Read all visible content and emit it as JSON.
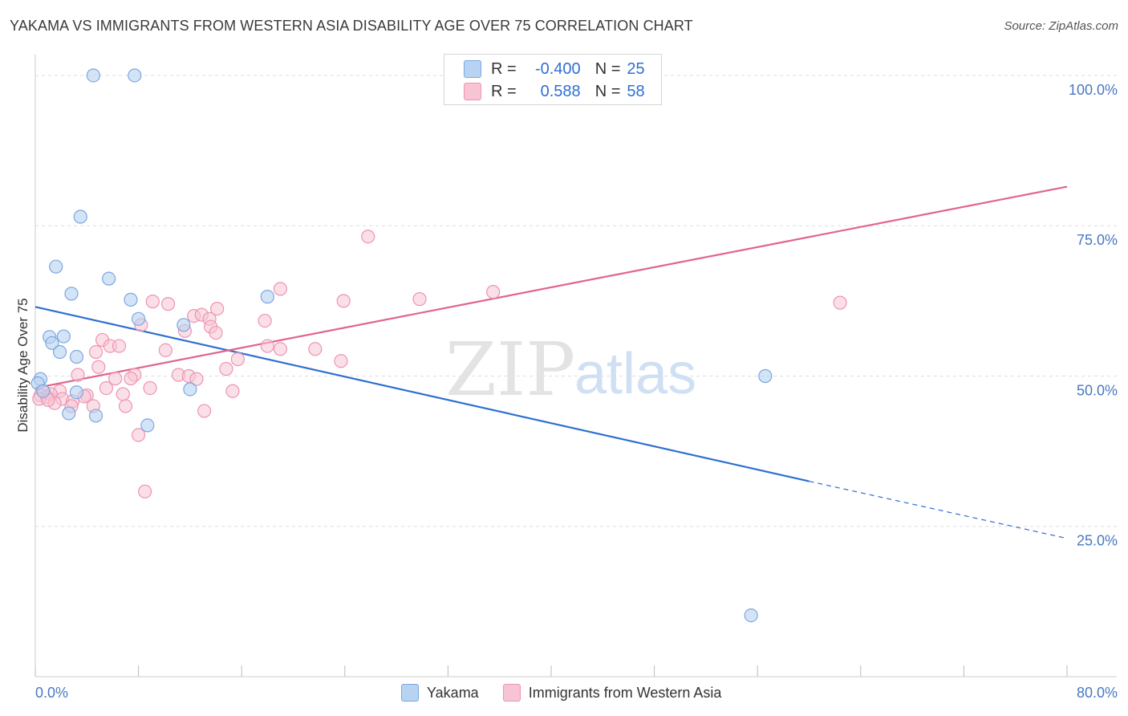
{
  "header": {
    "title": "YAKAMA VS IMMIGRANTS FROM WESTERN ASIA DISABILITY AGE OVER 75 CORRELATION CHART",
    "source": "Source: ZipAtlas.com"
  },
  "legend_top": {
    "rows": [
      {
        "r_label": "R =",
        "r_value": "-0.400",
        "n_label": "N =",
        "n_value": "25"
      },
      {
        "r_label": "R =",
        "r_value": "0.588",
        "n_label": "N =",
        "n_value": "58"
      }
    ]
  },
  "watermark": {
    "zip": "ZIP",
    "atlas": "atlas"
  },
  "colors": {
    "yakama_fill": "#b8d2f2",
    "yakama_stroke": "#7aa7e0",
    "yakama_line": "#2f6fd1",
    "wa_fill": "#f8c4d4",
    "wa_stroke": "#ec94b2",
    "wa_line": "#e0648c",
    "grid": "#dddddd",
    "axis_label": "#4a78c2"
  },
  "chart_data": {
    "type": "scatter",
    "title": "YAKAMA VS IMMIGRANTS FROM WESTERN ASIA DISABILITY AGE OVER 75 CORRELATION CHART",
    "xlabel": "",
    "ylabel": "Disability Age Over 75",
    "xlim": [
      0,
      80
    ],
    "ylim": [
      0,
      102
    ],
    "x_tick_labels": [
      "0.0%",
      "80.0%"
    ],
    "y_ticks": [
      25,
      50,
      75,
      100
    ],
    "y_tick_labels": [
      "25.0%",
      "50.0%",
      "75.0%",
      "100.0%"
    ],
    "grid": true,
    "legend_placement": "bottom",
    "series": [
      {
        "name": "Yakama",
        "r": -0.4,
        "n": 25,
        "trend": {
          "x0": 0,
          "y0": 61.5,
          "x1": 60,
          "y1": 32.5,
          "x_dash_end": 80,
          "y_dash_end": 23.0
        },
        "points": [
          [
            4.5,
            100
          ],
          [
            7.7,
            100
          ],
          [
            3.5,
            76.5
          ],
          [
            1.6,
            68.2
          ],
          [
            5.7,
            66.2
          ],
          [
            2.8,
            63.7
          ],
          [
            7.4,
            62.7
          ],
          [
            18.0,
            63.2
          ],
          [
            8.0,
            59.5
          ],
          [
            11.5,
            58.5
          ],
          [
            1.1,
            56.5
          ],
          [
            2.2,
            56.6
          ],
          [
            1.3,
            55.5
          ],
          [
            1.9,
            54.0
          ],
          [
            3.2,
            53.2
          ],
          [
            0.4,
            49.5
          ],
          [
            0.2,
            48.8
          ],
          [
            0.6,
            47.5
          ],
          [
            3.2,
            47.3
          ],
          [
            12.0,
            47.8
          ],
          [
            2.6,
            43.8
          ],
          [
            4.7,
            43.4
          ],
          [
            8.7,
            41.8
          ],
          [
            56.6,
            50.0
          ],
          [
            55.5,
            10.2
          ]
        ]
      },
      {
        "name": "Immigrants from Western Asia",
        "r": 0.588,
        "n": 58,
        "trend": {
          "x0": 0,
          "y0": 48.0,
          "x1": 80,
          "y1": 81.5
        },
        "points": [
          [
            25.8,
            73.2
          ],
          [
            19.0,
            64.5
          ],
          [
            35.5,
            64.0
          ],
          [
            23.9,
            62.5
          ],
          [
            29.8,
            62.8
          ],
          [
            62.4,
            62.2
          ],
          [
            9.1,
            62.4
          ],
          [
            10.3,
            62.0
          ],
          [
            14.1,
            61.2
          ],
          [
            12.3,
            60.0
          ],
          [
            12.9,
            60.2
          ],
          [
            13.5,
            59.5
          ],
          [
            17.8,
            59.2
          ],
          [
            8.2,
            58.5
          ],
          [
            13.6,
            58.2
          ],
          [
            11.6,
            57.5
          ],
          [
            14.0,
            57.2
          ],
          [
            5.2,
            56.0
          ],
          [
            5.8,
            55.0
          ],
          [
            6.5,
            55.0
          ],
          [
            18.0,
            55.0
          ],
          [
            19.0,
            54.5
          ],
          [
            21.7,
            54.5
          ],
          [
            10.1,
            54.3
          ],
          [
            4.7,
            54.0
          ],
          [
            15.7,
            52.8
          ],
          [
            23.7,
            52.5
          ],
          [
            4.9,
            51.5
          ],
          [
            14.8,
            51.2
          ],
          [
            3.3,
            50.2
          ],
          [
            11.1,
            50.2
          ],
          [
            11.9,
            50.0
          ],
          [
            7.7,
            50.2
          ],
          [
            7.4,
            49.6
          ],
          [
            6.2,
            49.6
          ],
          [
            12.5,
            49.5
          ],
          [
            8.9,
            48.0
          ],
          [
            5.5,
            48.0
          ],
          [
            15.3,
            47.5
          ],
          [
            1.9,
            47.5
          ],
          [
            0.7,
            47.3
          ],
          [
            1.2,
            47.0
          ],
          [
            0.4,
            46.8
          ],
          [
            0.9,
            46.5
          ],
          [
            6.8,
            47.0
          ],
          [
            4.0,
            46.8
          ],
          [
            2.1,
            46.2
          ],
          [
            3.8,
            46.6
          ],
          [
            0.3,
            46.2
          ],
          [
            2.9,
            45.8
          ],
          [
            1.5,
            45.5
          ],
          [
            2.8,
            45.0
          ],
          [
            4.5,
            45.0
          ],
          [
            7.0,
            45.0
          ],
          [
            13.1,
            44.2
          ],
          [
            8.0,
            40.2
          ],
          [
            8.5,
            30.8
          ],
          [
            1.0,
            46.0
          ]
        ]
      }
    ]
  }
}
